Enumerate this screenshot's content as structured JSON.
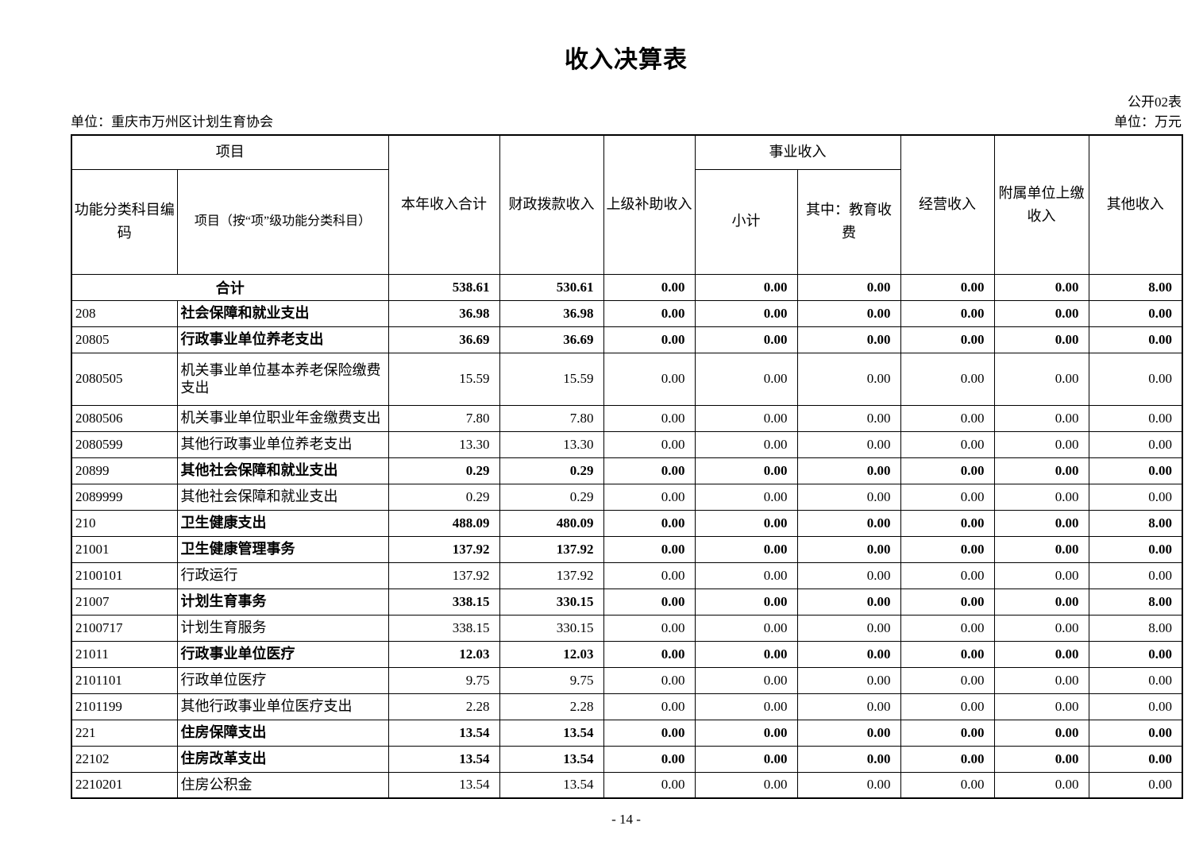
{
  "page": {
    "title": "收入决算表",
    "doc_label": "公开02表",
    "unit_left": "单位：重庆市万州区计划生育协会",
    "unit_right": "单位：万元",
    "page_number": "- 14 -"
  },
  "table": {
    "header": {
      "project_group": "项目",
      "code": "功能分类科目编码",
      "project_item": "项目（按“项”级功能分类科目）",
      "total_income": "本年收入合计",
      "fiscal_income": "财政拨款收入",
      "superior_subsidy": "上级补助收入",
      "business_income_group": "事业收入",
      "subtotal": "小计",
      "education_fees": "其中：教育收费",
      "operating_income": "经营收入",
      "affiliated_income": "附属单位上缴收入",
      "other_income": "其他收入"
    },
    "rows": [
      {
        "code": "",
        "name": "合计",
        "merged": true,
        "bold": true,
        "tall": false,
        "values": [
          "538.61",
          "530.61",
          "0.00",
          "0.00",
          "0.00",
          "0.00",
          "0.00",
          "8.00"
        ]
      },
      {
        "code": "208",
        "name": "社会保障和就业支出",
        "merged": false,
        "bold": true,
        "tall": false,
        "values": [
          "36.98",
          "36.98",
          "0.00",
          "0.00",
          "0.00",
          "0.00",
          "0.00",
          "0.00"
        ]
      },
      {
        "code": "20805",
        "name": "行政事业单位养老支出",
        "merged": false,
        "bold": true,
        "tall": false,
        "values": [
          "36.69",
          "36.69",
          "0.00",
          "0.00",
          "0.00",
          "0.00",
          "0.00",
          "0.00"
        ]
      },
      {
        "code": "2080505",
        "name": "机关事业单位基本养老保险缴费支出",
        "merged": false,
        "bold": false,
        "tall": true,
        "values": [
          "15.59",
          "15.59",
          "0.00",
          "0.00",
          "0.00",
          "0.00",
          "0.00",
          "0.00"
        ]
      },
      {
        "code": "2080506",
        "name": "机关事业单位职业年金缴费支出",
        "merged": false,
        "bold": false,
        "tall": false,
        "values": [
          "7.80",
          "7.80",
          "0.00",
          "0.00",
          "0.00",
          "0.00",
          "0.00",
          "0.00"
        ]
      },
      {
        "code": "2080599",
        "name": "其他行政事业单位养老支出",
        "merged": false,
        "bold": false,
        "tall": false,
        "values": [
          "13.30",
          "13.30",
          "0.00",
          "0.00",
          "0.00",
          "0.00",
          "0.00",
          "0.00"
        ]
      },
      {
        "code": "20899",
        "name": "其他社会保障和就业支出",
        "merged": false,
        "bold": true,
        "tall": false,
        "values": [
          "0.29",
          "0.29",
          "0.00",
          "0.00",
          "0.00",
          "0.00",
          "0.00",
          "0.00"
        ]
      },
      {
        "code": "2089999",
        "name": "其他社会保障和就业支出",
        "merged": false,
        "bold": false,
        "tall": false,
        "values": [
          "0.29",
          "0.29",
          "0.00",
          "0.00",
          "0.00",
          "0.00",
          "0.00",
          "0.00"
        ]
      },
      {
        "code": "210",
        "name": "卫生健康支出",
        "merged": false,
        "bold": true,
        "tall": false,
        "values": [
          "488.09",
          "480.09",
          "0.00",
          "0.00",
          "0.00",
          "0.00",
          "0.00",
          "8.00"
        ]
      },
      {
        "code": "21001",
        "name": "卫生健康管理事务",
        "merged": false,
        "bold": true,
        "tall": false,
        "values": [
          "137.92",
          "137.92",
          "0.00",
          "0.00",
          "0.00",
          "0.00",
          "0.00",
          "0.00"
        ]
      },
      {
        "code": "2100101",
        "name": "行政运行",
        "merged": false,
        "bold": false,
        "tall": false,
        "values": [
          "137.92",
          "137.92",
          "0.00",
          "0.00",
          "0.00",
          "0.00",
          "0.00",
          "0.00"
        ]
      },
      {
        "code": "21007",
        "name": "计划生育事务",
        "merged": false,
        "bold": true,
        "tall": false,
        "values": [
          "338.15",
          "330.15",
          "0.00",
          "0.00",
          "0.00",
          "0.00",
          "0.00",
          "8.00"
        ]
      },
      {
        "code": "2100717",
        "name": "计划生育服务",
        "merged": false,
        "bold": false,
        "tall": false,
        "values": [
          "338.15",
          "330.15",
          "0.00",
          "0.00",
          "0.00",
          "0.00",
          "0.00",
          "8.00"
        ]
      },
      {
        "code": "21011",
        "name": "行政事业单位医疗",
        "merged": false,
        "bold": true,
        "tall": false,
        "values": [
          "12.03",
          "12.03",
          "0.00",
          "0.00",
          "0.00",
          "0.00",
          "0.00",
          "0.00"
        ]
      },
      {
        "code": "2101101",
        "name": "行政单位医疗",
        "merged": false,
        "bold": false,
        "tall": false,
        "values": [
          "9.75",
          "9.75",
          "0.00",
          "0.00",
          "0.00",
          "0.00",
          "0.00",
          "0.00"
        ]
      },
      {
        "code": "2101199",
        "name": "其他行政事业单位医疗支出",
        "merged": false,
        "bold": false,
        "tall": false,
        "values": [
          "2.28",
          "2.28",
          "0.00",
          "0.00",
          "0.00",
          "0.00",
          "0.00",
          "0.00"
        ]
      },
      {
        "code": "221",
        "name": "住房保障支出",
        "merged": false,
        "bold": true,
        "tall": false,
        "values": [
          "13.54",
          "13.54",
          "0.00",
          "0.00",
          "0.00",
          "0.00",
          "0.00",
          "0.00"
        ]
      },
      {
        "code": "22102",
        "name": "住房改革支出",
        "merged": false,
        "bold": true,
        "tall": false,
        "values": [
          "13.54",
          "13.54",
          "0.00",
          "0.00",
          "0.00",
          "0.00",
          "0.00",
          "0.00"
        ]
      },
      {
        "code": "2210201",
        "name": "住房公积金",
        "merged": false,
        "bold": false,
        "tall": false,
        "values": [
          "13.54",
          "13.54",
          "0.00",
          "0.00",
          "0.00",
          "0.00",
          "0.00",
          "0.00"
        ]
      }
    ]
  }
}
